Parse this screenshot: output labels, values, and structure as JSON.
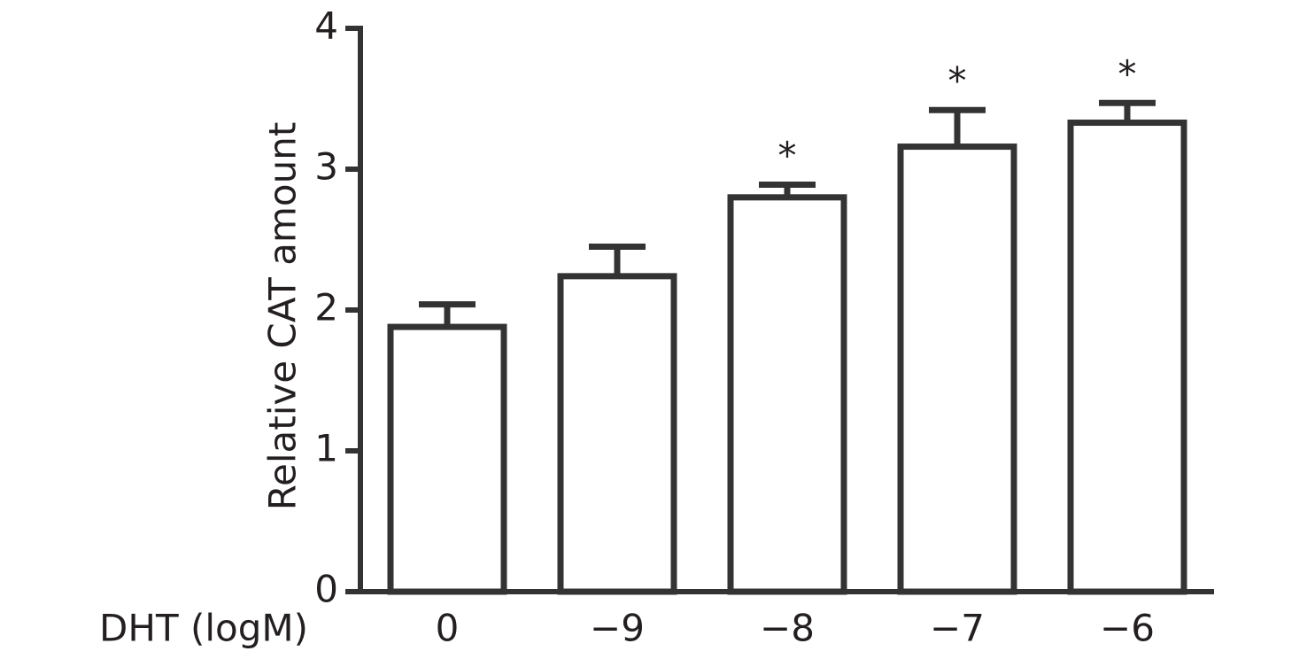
{
  "chart_data": {
    "type": "bar",
    "x_label": "DHT (logM)",
    "y_label": "Relative CAT amount",
    "categories": [
      "0",
      "−9",
      "−8",
      "−7",
      "−6"
    ],
    "values": [
      1.88,
      2.24,
      2.8,
      3.16,
      3.33
    ],
    "errors": [
      0.16,
      0.21,
      0.09,
      0.26,
      0.14
    ],
    "annotations": [
      null,
      null,
      "*",
      "*",
      "*"
    ],
    "color": "#333333",
    "ylim": [
      0,
      4
    ],
    "yticks": [
      0,
      1,
      2,
      3,
      4
    ]
  }
}
